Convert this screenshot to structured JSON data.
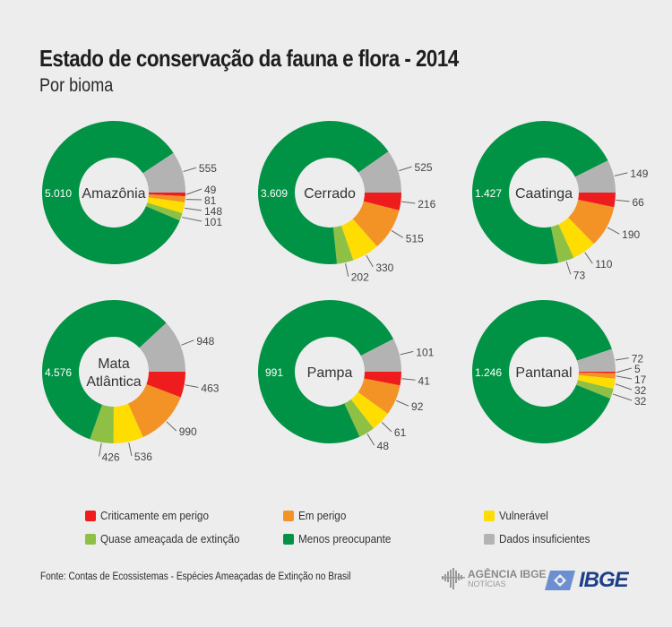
{
  "header": {
    "title": "Estado de conservação da fauna e flora - 2014",
    "subtitle": "Por bioma"
  },
  "chart_data": {
    "type": "pie",
    "variant": "donut",
    "title": "Estado de conservação da fauna e flora - 2014",
    "subtitle": "Por bioma",
    "categories": [
      "Criticamente em perigo",
      "Em perigo",
      "Vulnerável",
      "Quase ameaçada de extinção",
      "Menos preocupante",
      "Dados insuficientes"
    ],
    "colors": [
      "#ee1c1c",
      "#f39325",
      "#ffdd00",
      "#8dc044",
      "#009245",
      "#b3b3b3"
    ],
    "series": [
      {
        "name": "Amazônia",
        "label_lines": [
          "Amazônia"
        ],
        "values": [
          49,
          81,
          148,
          101,
          5010,
          555
        ],
        "value_labels": [
          "49",
          "81",
          "148",
          "101",
          "5.010",
          "555"
        ]
      },
      {
        "name": "Cerrado",
        "label_lines": [
          "Cerrado"
        ],
        "values": [
          216,
          515,
          330,
          202,
          3609,
          525
        ],
        "value_labels": [
          "216",
          "515",
          "330",
          "202",
          "3.609",
          "525"
        ]
      },
      {
        "name": "Caatinga",
        "label_lines": [
          "Caatinga"
        ],
        "values": [
          66,
          190,
          110,
          73,
          1427,
          149
        ],
        "value_labels": [
          "66",
          "190",
          "110",
          "73",
          "1.427",
          "149"
        ]
      },
      {
        "name": "Mata Atlântica",
        "label_lines": [
          "Mata",
          "Atlântica"
        ],
        "values": [
          463,
          990,
          536,
          426,
          4576,
          948
        ],
        "value_labels": [
          "463",
          "990",
          "536",
          "426",
          "4.576",
          "948"
        ]
      },
      {
        "name": "Pampa",
        "label_lines": [
          "Pampa"
        ],
        "values": [
          41,
          92,
          61,
          48,
          991,
          101
        ],
        "value_labels": [
          "41",
          "92",
          "61",
          "48",
          "991",
          "101"
        ]
      },
      {
        "name": "Pantanal",
        "label_lines": [
          "Pantanal"
        ],
        "values": [
          5,
          17,
          32,
          32,
          1246,
          72
        ],
        "value_labels": [
          "5",
          "17",
          "32",
          "32",
          "1.246",
          "72"
        ]
      }
    ],
    "legend_position": "bottom"
  },
  "legend": [
    {
      "label": "Criticamente em perigo",
      "color": "#ee1c1c"
    },
    {
      "label": "Em perigo",
      "color": "#f39325"
    },
    {
      "label": "Vulnerável",
      "color": "#ffdd00"
    },
    {
      "label": "Quase ameaçada de extinção",
      "color": "#8dc044"
    },
    {
      "label": "Menos preocupante",
      "color": "#009245"
    },
    {
      "label": "Dados insuficientes",
      "color": "#b3b3b3"
    }
  ],
  "footer": {
    "source": "Fonte: Contas de Ecossistemas - Espécies Ameaçadas de Extinção no Brasil",
    "agencia_line1": "AGÊNCIA IBGE",
    "agencia_line2": "NOTÍCIAS",
    "ibge_logo": "IBGE"
  }
}
